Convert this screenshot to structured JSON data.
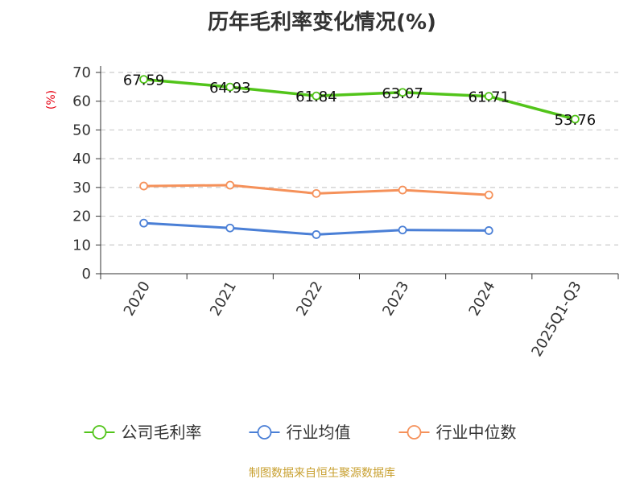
{
  "chart_data": {
    "type": "line",
    "title": "历年毛利率变化情况(%)",
    "ylabel": "(%)",
    "categories": [
      "2020",
      "2021",
      "2022",
      "2023",
      "2024",
      "2025Q1-Q3"
    ],
    "ylim": [
      0,
      70
    ],
    "yticks": [
      0,
      10,
      20,
      30,
      40,
      50,
      60,
      70
    ],
    "grid": true,
    "legend_position": "bottom",
    "series": [
      {
        "name": "公司毛利率",
        "color": "#52c41a",
        "values": [
          67.59,
          64.93,
          61.84,
          63.07,
          61.71,
          53.76
        ],
        "labels": [
          "67.59",
          "64.93",
          "61.84",
          "63.07",
          "61.71",
          "53.76"
        ]
      },
      {
        "name": "行业均值",
        "color": "#4a7fd6",
        "values": [
          17.6,
          15.9,
          13.6,
          15.2,
          15.0,
          null
        ]
      },
      {
        "name": "行业中位数",
        "color": "#f5915a",
        "values": [
          30.5,
          30.8,
          27.9,
          29.1,
          27.4,
          null
        ]
      }
    ]
  },
  "source": "制图数据来自恒生聚源数据库"
}
